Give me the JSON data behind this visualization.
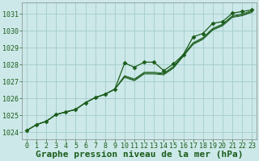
{
  "title": "Graphe pression niveau de la mer (hPa)",
  "background_color": "#cce8e8",
  "grid_color": "#a8d0d0",
  "line_color": "#1a5c1a",
  "marker_color": "#1a5c1a",
  "xlabel_color": "#1a5c1a",
  "xlim": [
    -0.5,
    23.5
  ],
  "ylim": [
    1023.6,
    1031.7
  ],
  "yticks": [
    1024,
    1025,
    1026,
    1027,
    1028,
    1029,
    1030,
    1031
  ],
  "xticks": [
    0,
    1,
    2,
    3,
    4,
    5,
    6,
    7,
    8,
    9,
    10,
    11,
    12,
    13,
    14,
    15,
    16,
    17,
    18,
    19,
    20,
    21,
    22,
    23
  ],
  "series": [
    [
      1024.1,
      1024.45,
      1024.65,
      1025.05,
      1025.2,
      1025.35,
      1025.75,
      1026.05,
      1026.25,
      1026.55,
      1028.1,
      1027.85,
      1028.15,
      1028.15,
      1027.65,
      1028.05,
      1028.6,
      1029.65,
      1029.85,
      1030.45,
      1030.55,
      1031.05,
      1031.15,
      1031.25
    ],
    [
      1024.1,
      1024.45,
      1024.65,
      1025.05,
      1025.2,
      1025.35,
      1025.75,
      1026.05,
      1026.25,
      1026.55,
      1027.3,
      1027.1,
      1027.5,
      1027.5,
      1027.45,
      1027.85,
      1028.55,
      1029.25,
      1029.55,
      1030.1,
      1030.35,
      1030.85,
      1030.95,
      1031.15
    ],
    [
      1024.1,
      1024.45,
      1024.65,
      1025.05,
      1025.2,
      1025.35,
      1025.75,
      1026.05,
      1026.25,
      1026.55,
      1027.35,
      1027.15,
      1027.55,
      1027.55,
      1027.5,
      1027.9,
      1028.6,
      1029.3,
      1029.6,
      1030.15,
      1030.4,
      1030.9,
      1031.0,
      1031.2
    ],
    [
      1024.1,
      1024.45,
      1024.65,
      1025.05,
      1025.2,
      1025.35,
      1025.75,
      1026.05,
      1026.25,
      1026.55,
      1027.25,
      1027.05,
      1027.45,
      1027.45,
      1027.4,
      1027.8,
      1028.5,
      1029.2,
      1029.5,
      1030.05,
      1030.3,
      1030.8,
      1030.9,
      1031.1
    ]
  ],
  "title_fontsize": 8,
  "tick_fontsize": 6
}
